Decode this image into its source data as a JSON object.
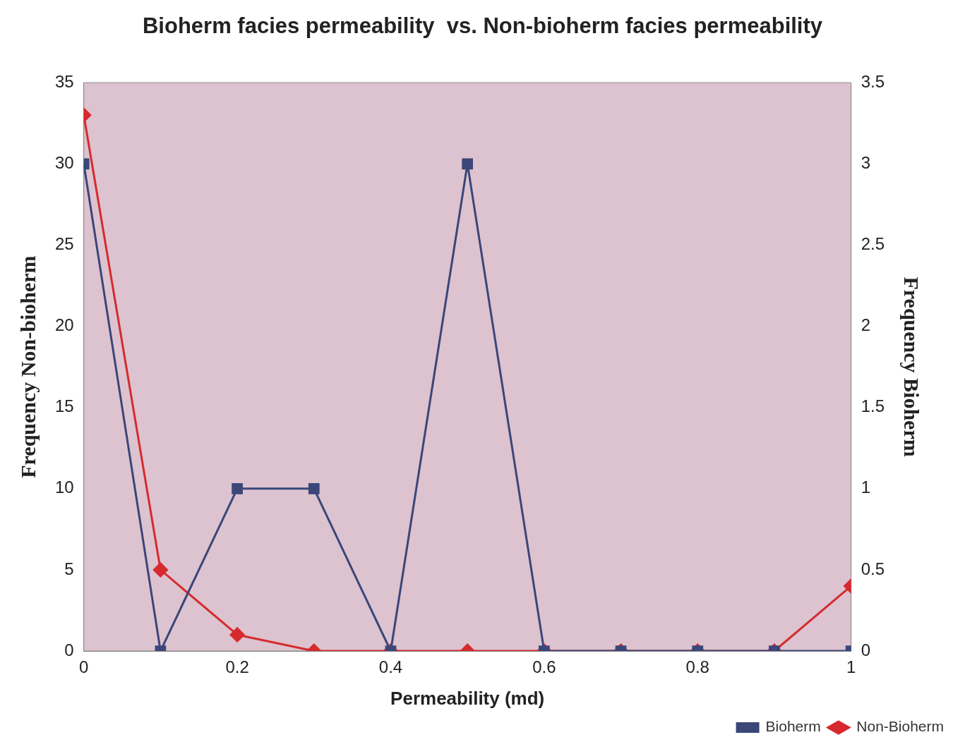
{
  "chart_data": {
    "type": "line",
    "title": "Bioherm facies permeability  vs. Non-bioherm facies permeability",
    "xlabel": "Permeability (md)",
    "ylabel": "Frequency Non-bioherm",
    "y2label": "Frequency Bioherm",
    "x": [
      0,
      0.1,
      0.2,
      0.3,
      0.4,
      0.5,
      0.6,
      0.7,
      0.8,
      0.9,
      1
    ],
    "series": [
      {
        "name": "Bioherm",
        "color": "#3b4679",
        "axis": "y2",
        "marker": "square",
        "values": [
          3,
          0,
          1,
          1,
          0,
          3,
          0,
          0,
          0,
          0,
          0
        ]
      },
      {
        "name": "Non-Bioherm",
        "color": "#d62a2e",
        "marker": "diamond",
        "values": [
          33,
          5,
          1,
          0,
          0,
          0,
          0,
          0,
          0,
          0,
          4
        ]
      }
    ],
    "xlim": [
      0,
      1
    ],
    "xticks": [
      0,
      0.2,
      0.4,
      0.6,
      0.8,
      1
    ],
    "ylim": [
      0,
      35
    ],
    "yticks": [
      0,
      5,
      10,
      15,
      20,
      25,
      30,
      35
    ],
    "y2lim": [
      0,
      3.5
    ],
    "y2ticks": [
      0,
      0.5,
      1,
      1.5,
      2,
      2.5,
      3,
      3.5
    ],
    "grid": false,
    "legend": "bottom right",
    "line_style": "solid"
  }
}
